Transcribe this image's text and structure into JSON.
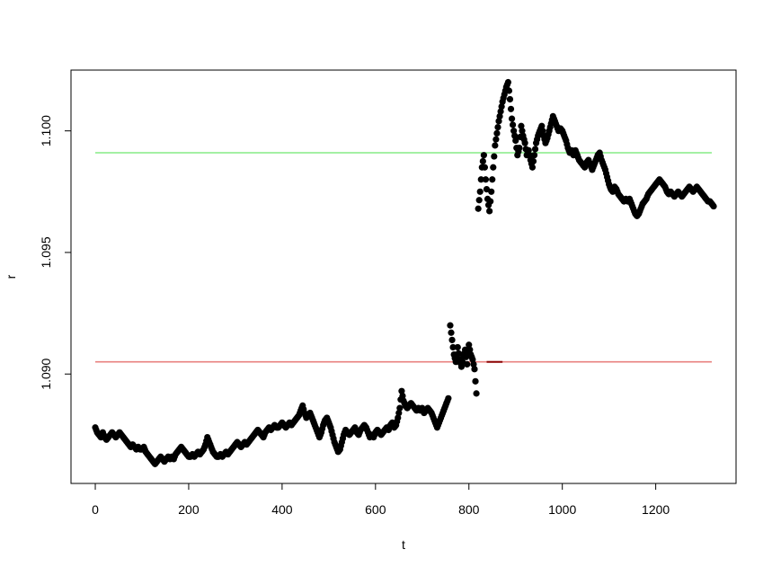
{
  "chart_data": {
    "type": "scatter",
    "title": "",
    "xlabel": "t",
    "ylabel": "r",
    "xlim": [
      -52,
      1372
    ],
    "ylim": [
      1.0855,
      1.1025
    ],
    "x_ticks": [
      0,
      200,
      400,
      600,
      800,
      1000,
      1200
    ],
    "x_tick_labels": [
      "0",
      "200",
      "400",
      "600",
      "800",
      "1000",
      "1200"
    ],
    "y_ticks": [
      1.09,
      1.095,
      1.1
    ],
    "y_tick_labels": [
      "1.090",
      "1.095",
      "1.100"
    ],
    "grid": false,
    "legend": "none",
    "point_color": "#000000",
    "x_step": 4,
    "y_values_series": [
      1.0878,
      1.0876,
      1.0875,
      1.0874,
      1.0876,
      1.0874,
      1.0873,
      1.0874,
      1.0875,
      1.0876,
      1.0875,
      1.0874,
      1.0875,
      1.0876,
      1.0875,
      1.0874,
      1.0873,
      1.0872,
      1.0871,
      1.087,
      1.0871,
      1.087,
      1.0869,
      1.087,
      1.0869,
      1.0869,
      1.087,
      1.0868,
      1.0867,
      1.0866,
      1.0865,
      1.0864,
      1.0863,
      1.0864,
      1.0865,
      1.0866,
      1.0865,
      1.0864,
      1.0865,
      1.0866,
      1.0865,
      1.0866,
      1.0865,
      1.0867,
      1.0868,
      1.0869,
      1.087,
      1.0869,
      1.0868,
      1.0867,
      1.0866,
      1.0866,
      1.0867,
      1.0866,
      1.0867,
      1.0868,
      1.0867,
      1.0868,
      1.0869,
      1.0871,
      1.0874,
      1.0872,
      1.087,
      1.0868,
      1.0867,
      1.0866,
      1.0866,
      1.0867,
      1.0866,
      1.0867,
      1.0868,
      1.0867,
      1.0868,
      1.0869,
      1.087,
      1.0871,
      1.0872,
      1.0871,
      1.087,
      1.0871,
      1.0872,
      1.0871,
      1.0872,
      1.0873,
      1.0874,
      1.0875,
      1.0876,
      1.0877,
      1.0876,
      1.0875,
      1.0874,
      1.0876,
      1.0877,
      1.0878,
      1.0877,
      1.0878,
      1.0879,
      1.0878,
      1.0878,
      1.0879,
      1.088,
      1.0879,
      1.0878,
      1.0879,
      1.088,
      1.0879,
      1.088,
      1.0881,
      1.0882,
      1.0883,
      1.0885,
      1.0887,
      1.0884,
      1.0882,
      1.0883,
      1.0884,
      1.0882,
      1.088,
      1.0878,
      1.0876,
      1.0874,
      1.0876,
      1.0879,
      1.0881,
      1.0882,
      1.088,
      1.0878,
      1.0875,
      1.0872,
      1.087,
      1.0868,
      1.0869,
      1.0872,
      1.0875,
      1.0877,
      1.0876,
      1.0875,
      1.0876,
      1.0877,
      1.0878,
      1.0876,
      1.0875,
      1.0877,
      1.0878,
      1.0879,
      1.0878,
      1.0876,
      1.0874,
      1.0875,
      1.0874,
      1.0876,
      1.0877,
      1.0876,
      1.0875,
      1.0876,
      1.0877,
      1.0878,
      1.0877,
      1.0879,
      1.088,
      1.0878,
      1.0879,
      1.0882,
      1.0886,
      1.0893,
      1.0889,
      1.0887,
      1.0886,
      1.0887,
      1.0888,
      1.0887,
      1.0886,
      1.0885,
      1.0886,
      1.0885,
      1.0886,
      1.0884,
      1.0885,
      1.0886,
      1.0885,
      1.0884,
      1.0882,
      1.088,
      1.0878,
      1.088,
      1.0882,
      1.0884,
      1.0886,
      1.0888,
      1.089,
      1.092,
      1.0914,
      1.0908,
      1.0905,
      1.0911,
      1.0906,
      1.0903,
      1.0907,
      1.091,
      1.0904,
      1.0912,
      1.0908,
      1.0906,
      1.0902,
      1.0892,
      1.0968,
      1.0975,
      1.0985,
      1.099,
      1.098,
      1.0972,
      1.0967,
      1.0975,
      1.0985,
      1.0994,
      1.0999,
      1.1004,
      1.1008,
      1.1012,
      1.1015,
      1.1018,
      1.102,
      1.1013,
      1.1005,
      1.1,
      1.0996,
      1.099,
      1.0993,
      1.1002,
      1.0998,
      1.0995,
      1.099,
      1.0992,
      1.0988,
      1.0985,
      1.099,
      1.0995,
      1.0998,
      1.1,
      1.1002,
      1.0998,
      1.0995,
      1.0997,
      1.1,
      1.1003,
      1.1006,
      1.1004,
      1.1002,
      1.1,
      1.1001,
      1.1,
      1.0998,
      1.0996,
      1.0993,
      1.0991,
      1.0992,
      1.099,
      1.0992,
      1.099,
      1.0988,
      1.0987,
      1.0986,
      1.0985,
      1.0987,
      1.0988,
      1.0986,
      1.0984,
      1.0986,
      1.0988,
      1.099,
      1.0991,
      1.0988,
      1.0986,
      1.0984,
      1.0981,
      1.0978,
      1.0976,
      1.0975,
      1.0977,
      1.0976,
      1.0974,
      1.0973,
      1.0972,
      1.0971,
      1.0972,
      1.0971,
      1.0972,
      1.097,
      1.0968,
      1.0966,
      1.0965,
      1.0966,
      1.0968,
      1.097,
      1.0971,
      1.0972,
      1.0974,
      1.0975,
      1.0976,
      1.0977,
      1.0978,
      1.0979,
      1.098,
      1.0979,
      1.0978,
      1.0977,
      1.0975,
      1.0974,
      1.0975,
      1.0974,
      1.0973,
      1.0974,
      1.0975,
      1.0974,
      1.0973,
      1.0974,
      1.0975,
      1.0976,
      1.0977,
      1.0976,
      1.0975,
      1.0976,
      1.0977,
      1.0976,
      1.0975,
      1.0974,
      1.0973,
      1.0972,
      1.0971,
      1.0971,
      1.097,
      1.0969
    ],
    "reference_lines": [
      {
        "y": 1.0905,
        "x_from": 0,
        "x_to": 1320,
        "color": "#e8817f"
      },
      {
        "y": 1.0991,
        "x_from": 0,
        "x_to": 1320,
        "color": "#86ec86"
      }
    ],
    "segments": [
      {
        "y": 1.0905,
        "x_from": 838,
        "x_to": 872,
        "color": "#8b0000"
      }
    ]
  }
}
